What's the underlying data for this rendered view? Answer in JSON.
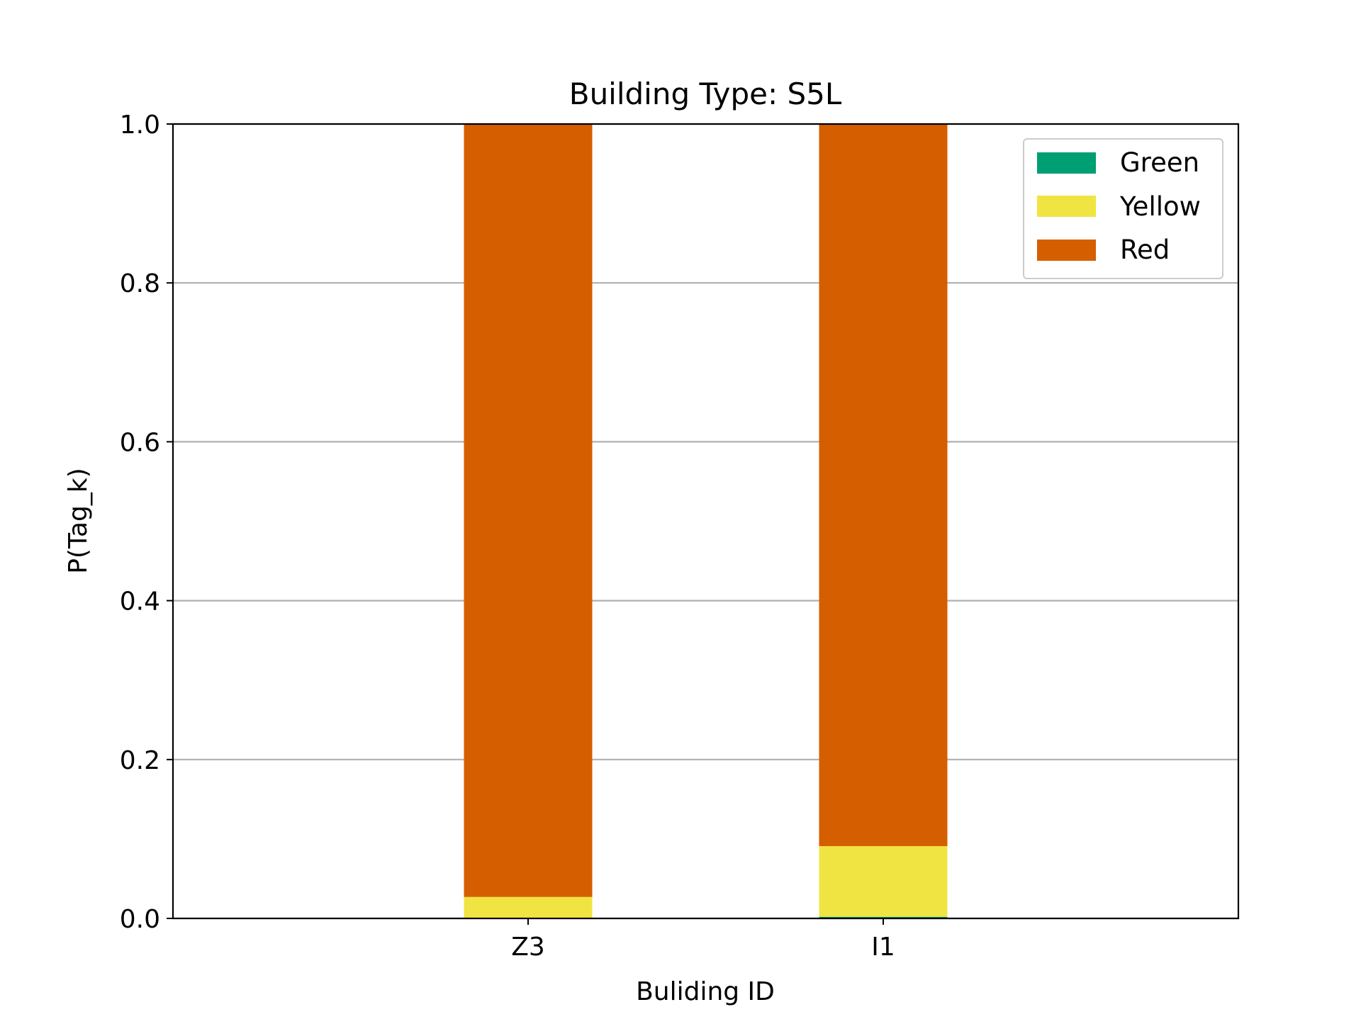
{
  "chart_data": {
    "type": "bar",
    "stacked": true,
    "title": "Building Type: S5L",
    "xlabel": "Buliding ID",
    "ylabel": "P(Tag_k)",
    "categories": [
      "Z3",
      "I1"
    ],
    "series": [
      {
        "name": "Green",
        "color": "#009e73",
        "values": [
          0.0,
          0.002
        ]
      },
      {
        "name": "Yellow",
        "color": "#f0e442",
        "values": [
          0.027,
          0.089
        ]
      },
      {
        "name": "Red",
        "color": "#d55e00",
        "values": [
          0.973,
          0.909
        ]
      }
    ],
    "ylim": [
      0,
      1.0
    ],
    "yticks": [
      "0.0",
      "0.2",
      "0.4",
      "0.6",
      "0.8",
      "1.0"
    ],
    "grid": "y",
    "legend_position": "top-right"
  }
}
